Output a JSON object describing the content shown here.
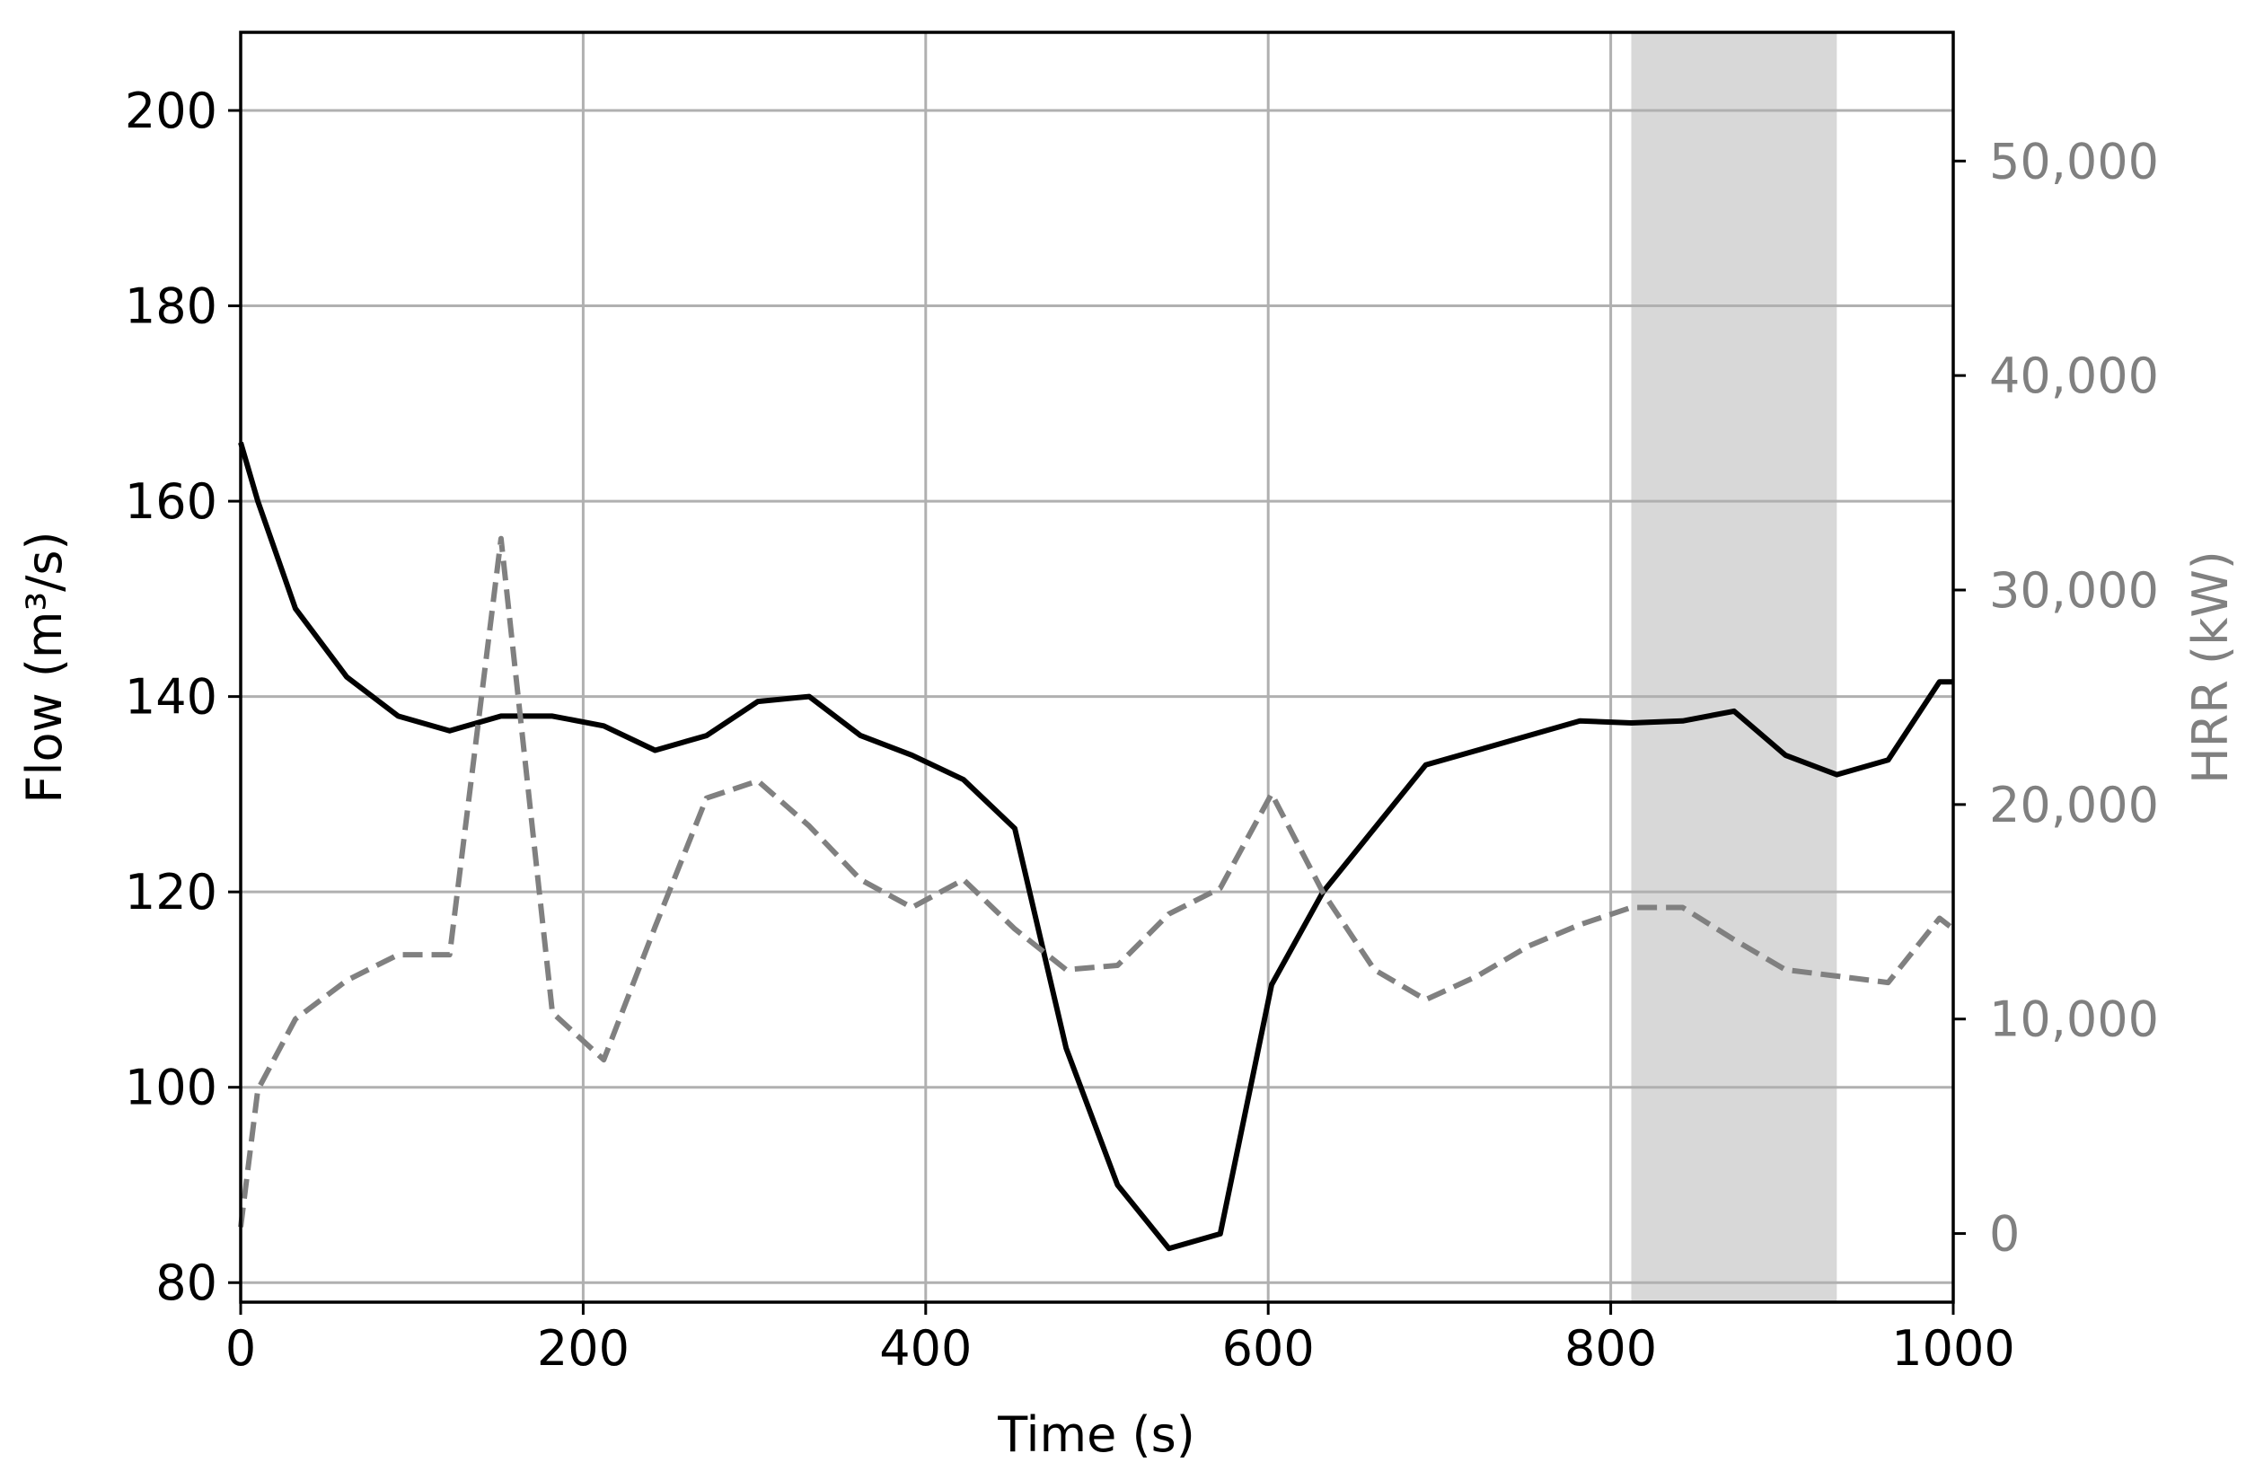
{
  "chart_data": {
    "type": "line",
    "xlabel": "Time (s)",
    "ylabel": "Flow (m³/s)",
    "y2label": "HRR (kW)",
    "xlim": [
      0,
      1000
    ],
    "ylim": [
      78,
      208
    ],
    "y2lim": [
      -3200,
      56000
    ],
    "x_ticks": [
      0,
      200,
      400,
      600,
      800,
      1000
    ],
    "x_tick_labels": [
      "0",
      "200",
      "400",
      "600",
      "800",
      "1000"
    ],
    "y_ticks": [
      80,
      100,
      120,
      140,
      160,
      180,
      200
    ],
    "y_tick_labels": [
      "80",
      "100",
      "120",
      "140",
      "160",
      "180",
      "200"
    ],
    "y2_ticks": [
      0,
      10000,
      20000,
      30000,
      40000,
      50000
    ],
    "y2_tick_labels": [
      "0",
      "10,000",
      "20,000",
      "30,000",
      "40,000",
      "50,000"
    ],
    "grid": true,
    "shaded_region": {
      "x": [
        812,
        932
      ],
      "color": "#d8d8d8"
    },
    "series": [
      {
        "axis": "left",
        "style": "solid",
        "color": "#000000",
        "points": [
          [
            0,
            166
          ],
          [
            10,
            160
          ],
          [
            32,
            149
          ],
          [
            62,
            142
          ],
          [
            92,
            138
          ],
          [
            122,
            136.5
          ],
          [
            152,
            138
          ],
          [
            182,
            138
          ],
          [
            212,
            137
          ],
          [
            242,
            134.5
          ],
          [
            272,
            136
          ],
          [
            302,
            139.5
          ],
          [
            332,
            140
          ],
          [
            362,
            136
          ],
          [
            392,
            134
          ],
          [
            422,
            131.5
          ],
          [
            452,
            126.5
          ],
          [
            482,
            104
          ],
          [
            512,
            90
          ],
          [
            542,
            83.5
          ],
          [
            572,
            85
          ],
          [
            602,
            110.5
          ],
          [
            632,
            120
          ],
          [
            662,
            126.5
          ],
          [
            692,
            133
          ],
          [
            722,
            134.5
          ],
          [
            752,
            136
          ],
          [
            782,
            137.5
          ],
          [
            812,
            137.3
          ],
          [
            842,
            137.5
          ],
          [
            872,
            138.5
          ],
          [
            902,
            134
          ],
          [
            932,
            132
          ],
          [
            962,
            133.5
          ],
          [
            992,
            141.5
          ],
          [
            1000,
            141.5
          ]
        ]
      },
      {
        "axis": "right",
        "style": "dashed",
        "color": "#808080",
        "points": [
          [
            0,
            300
          ],
          [
            10,
            6700
          ],
          [
            32,
            10000
          ],
          [
            62,
            11800
          ],
          [
            92,
            13000
          ],
          [
            122,
            13000
          ],
          [
            152,
            32400
          ],
          [
            182,
            10300
          ],
          [
            212,
            8100
          ],
          [
            242,
            14300
          ],
          [
            272,
            20300
          ],
          [
            302,
            21100
          ],
          [
            332,
            19000
          ],
          [
            362,
            16500
          ],
          [
            392,
            15200
          ],
          [
            422,
            16500
          ],
          [
            452,
            14200
          ],
          [
            482,
            12300
          ],
          [
            512,
            12500
          ],
          [
            542,
            14900
          ],
          [
            572,
            16100
          ],
          [
            602,
            20500
          ],
          [
            632,
            15900
          ],
          [
            662,
            12300
          ],
          [
            692,
            10900
          ],
          [
            722,
            12000
          ],
          [
            752,
            13400
          ],
          [
            782,
            14400
          ],
          [
            812,
            15200
          ],
          [
            842,
            15200
          ],
          [
            872,
            13700
          ],
          [
            902,
            12300
          ],
          [
            932,
            12000
          ],
          [
            962,
            11700
          ],
          [
            992,
            14700
          ],
          [
            1000,
            14200
          ]
        ]
      }
    ]
  }
}
